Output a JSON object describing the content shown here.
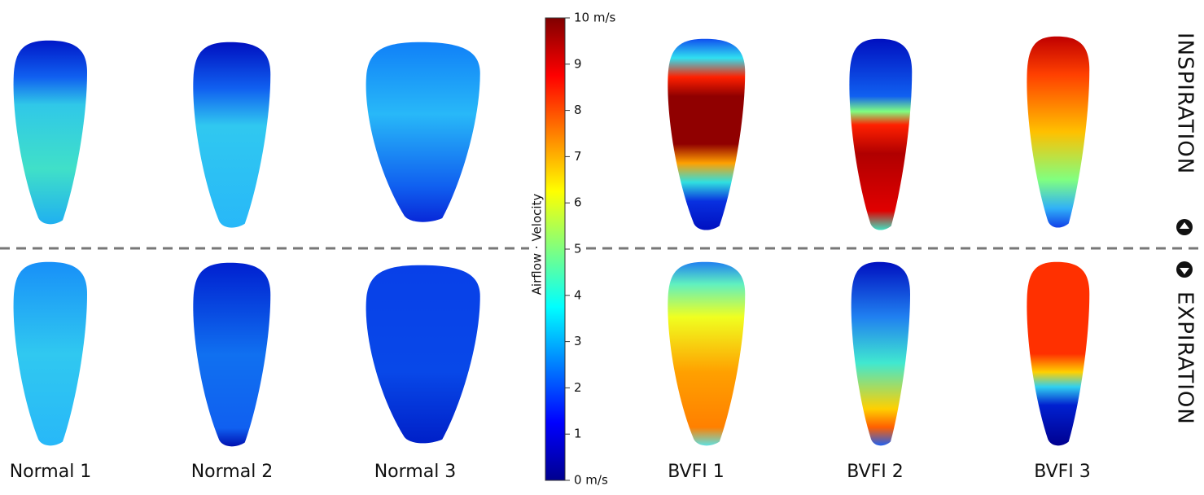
{
  "colorbar": {
    "label": "Airflow · Velocity",
    "ticks": [
      {
        "value": 10,
        "label": "10 m/s"
      },
      9,
      8,
      7,
      6,
      5,
      4,
      3,
      2,
      1,
      {
        "value": 0,
        "label": "0 m/s"
      }
    ]
  },
  "labels": [
    "Normal 1",
    "Normal 2",
    "Normal 3",
    "BVFI 1",
    "BVFI 2",
    "BVFI 3"
  ],
  "phases": [
    "INSPIRATION",
    "EXPIRATION"
  ]
}
